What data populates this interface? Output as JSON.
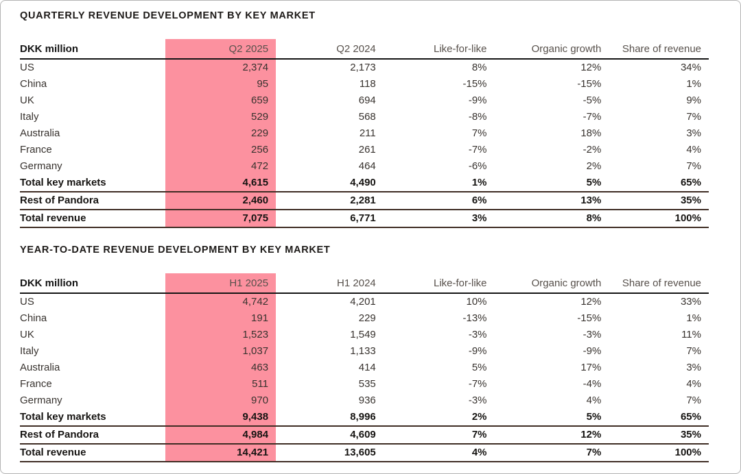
{
  "page": {
    "background": "#ffffff",
    "border_color": "#b3b3b3"
  },
  "colors": {
    "highlight_pink": "#FC919F",
    "header_text": "#57504B",
    "body_text": "#37322E",
    "strong_text": "#161412",
    "header_rule": "#141414",
    "total_rule": "#3E2C23"
  },
  "sections": [
    {
      "title": "QUARTERLY REVENUE DEVELOPMENT BY KEY MARKET",
      "table": {
        "columns": [
          "DKK million",
          "Q2 2025",
          "Q2 2024",
          "Like-for-like",
          "Organic growth",
          "Share of revenue"
        ],
        "highlight_column_index": 1,
        "rows": [
          {
            "label": "US",
            "values": [
              "2,374",
              "2,173",
              "8%",
              "12%",
              "34%"
            ],
            "total": false
          },
          {
            "label": "China",
            "values": [
              "95",
              "118",
              "-15%",
              "-15%",
              "1%"
            ],
            "total": false
          },
          {
            "label": "UK",
            "values": [
              "659",
              "694",
              "-9%",
              "-5%",
              "9%"
            ],
            "total": false
          },
          {
            "label": "Italy",
            "values": [
              "529",
              "568",
              "-8%",
              "-7%",
              "7%"
            ],
            "total": false
          },
          {
            "label": "Australia",
            "values": [
              "229",
              "211",
              "7%",
              "18%",
              "3%"
            ],
            "total": false
          },
          {
            "label": "France",
            "values": [
              "256",
              "261",
              "-7%",
              "-2%",
              "4%"
            ],
            "total": false
          },
          {
            "label": "Germany",
            "values": [
              "472",
              "464",
              "-6%",
              "2%",
              "7%"
            ],
            "total": false
          },
          {
            "label": "Total key markets",
            "values": [
              "4,615",
              "4,490",
              "1%",
              "5%",
              "65%"
            ],
            "total": true
          },
          {
            "label": "Rest of Pandora",
            "values": [
              "2,460",
              "2,281",
              "6%",
              "13%",
              "35%"
            ],
            "total": true
          },
          {
            "label": "Total revenue",
            "values": [
              "7,075",
              "6,771",
              "3%",
              "8%",
              "100%"
            ],
            "total": true
          }
        ]
      }
    },
    {
      "title": "YEAR-TO-DATE REVENUE DEVELOPMENT BY KEY MARKET",
      "table": {
        "columns": [
          "DKK million",
          "H1 2025",
          "H1 2024",
          "Like-for-like",
          "Organic growth",
          "Share of revenue"
        ],
        "highlight_column_index": 1,
        "rows": [
          {
            "label": "US",
            "values": [
              "4,742",
              "4,201",
              "10%",
              "12%",
              "33%"
            ],
            "total": false
          },
          {
            "label": "China",
            "values": [
              "191",
              "229",
              "-13%",
              "-15%",
              "1%"
            ],
            "total": false
          },
          {
            "label": "UK",
            "values": [
              "1,523",
              "1,549",
              "-3%",
              "-3%",
              "11%"
            ],
            "total": false
          },
          {
            "label": "Italy",
            "values": [
              "1,037",
              "1,133",
              "-9%",
              "-9%",
              "7%"
            ],
            "total": false
          },
          {
            "label": "Australia",
            "values": [
              "463",
              "414",
              "5%",
              "17%",
              "3%"
            ],
            "total": false
          },
          {
            "label": "France",
            "values": [
              "511",
              "535",
              "-7%",
              "-4%",
              "4%"
            ],
            "total": false
          },
          {
            "label": "Germany",
            "values": [
              "970",
              "936",
              "-3%",
              "4%",
              "7%"
            ],
            "total": false
          },
          {
            "label": "Total key markets",
            "values": [
              "9,438",
              "8,996",
              "2%",
              "5%",
              "65%"
            ],
            "total": true
          },
          {
            "label": "Rest of Pandora",
            "values": [
              "4,984",
              "4,609",
              "7%",
              "12%",
              "35%"
            ],
            "total": true
          },
          {
            "label": "Total revenue",
            "values": [
              "14,421",
              "13,605",
              "4%",
              "7%",
              "100%"
            ],
            "total": true
          }
        ]
      }
    }
  ]
}
